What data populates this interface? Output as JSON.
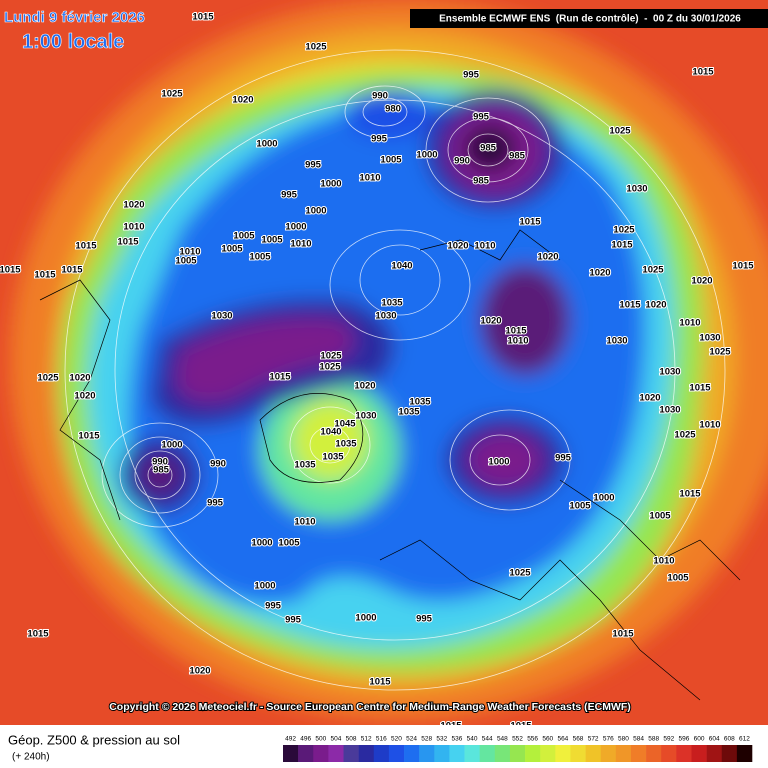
{
  "header": {
    "date": "Lundi 9 février 2026",
    "time": "1:00 locale",
    "run": "Ensemble ECMWF ENS  (Run de contrôle)  -  00 Z du 30/01/2026"
  },
  "copyright": "Copyright © 2026 Meteociel.fr - Source European Centre for Medium-Range Weather Forecasts (ECMWF)",
  "legend": {
    "title": "Géop. Z500 & pression au sol",
    "subtitle": "(+ 240h)",
    "ticks": [
      492,
      496,
      500,
      504,
      508,
      512,
      516,
      520,
      524,
      528,
      532,
      536,
      540,
      544,
      548,
      552,
      556,
      560,
      564,
      568,
      572,
      576,
      580,
      584,
      588,
      592,
      596,
      600,
      604,
      608,
      612
    ]
  },
  "isobar_labels": [
    1015,
    1025,
    1025,
    1020,
    995,
    1015,
    990,
    980,
    995,
    1000,
    995,
    1005,
    1000,
    995,
    985,
    985,
    990,
    985,
    1025,
    1010,
    1000,
    995,
    1030,
    1000,
    1020,
    1010,
    1015,
    1000,
    1005,
    1005,
    1010,
    1015,
    1010,
    1005,
    1005,
    1005,
    1015,
    1025,
    1015,
    1040,
    1020,
    1010,
    1020,
    1020,
    1015,
    1025,
    1020,
    1015,
    1015,
    1015,
    1035,
    1030,
    1030,
    1020,
    1015,
    1010,
    1025,
    1025,
    1020,
    1015,
    1035,
    1035,
    1030,
    1020,
    1025,
    1020,
    1015,
    1000,
    990,
    985,
    990,
    995,
    1045,
    1040,
    1035,
    1035,
    1035,
    1000,
    995,
    1010,
    1000,
    1005,
    1000,
    995,
    995,
    1000,
    995,
    1000,
    1005,
    1025,
    1005,
    1010,
    1005,
    1015,
    1015,
    1020,
    1015,
    1015,
    1015,
    1015,
    1020,
    1030,
    1010,
    1030,
    1025,
    1030,
    1015,
    1020,
    1030,
    1025,
    1010,
    1015
  ]
}
